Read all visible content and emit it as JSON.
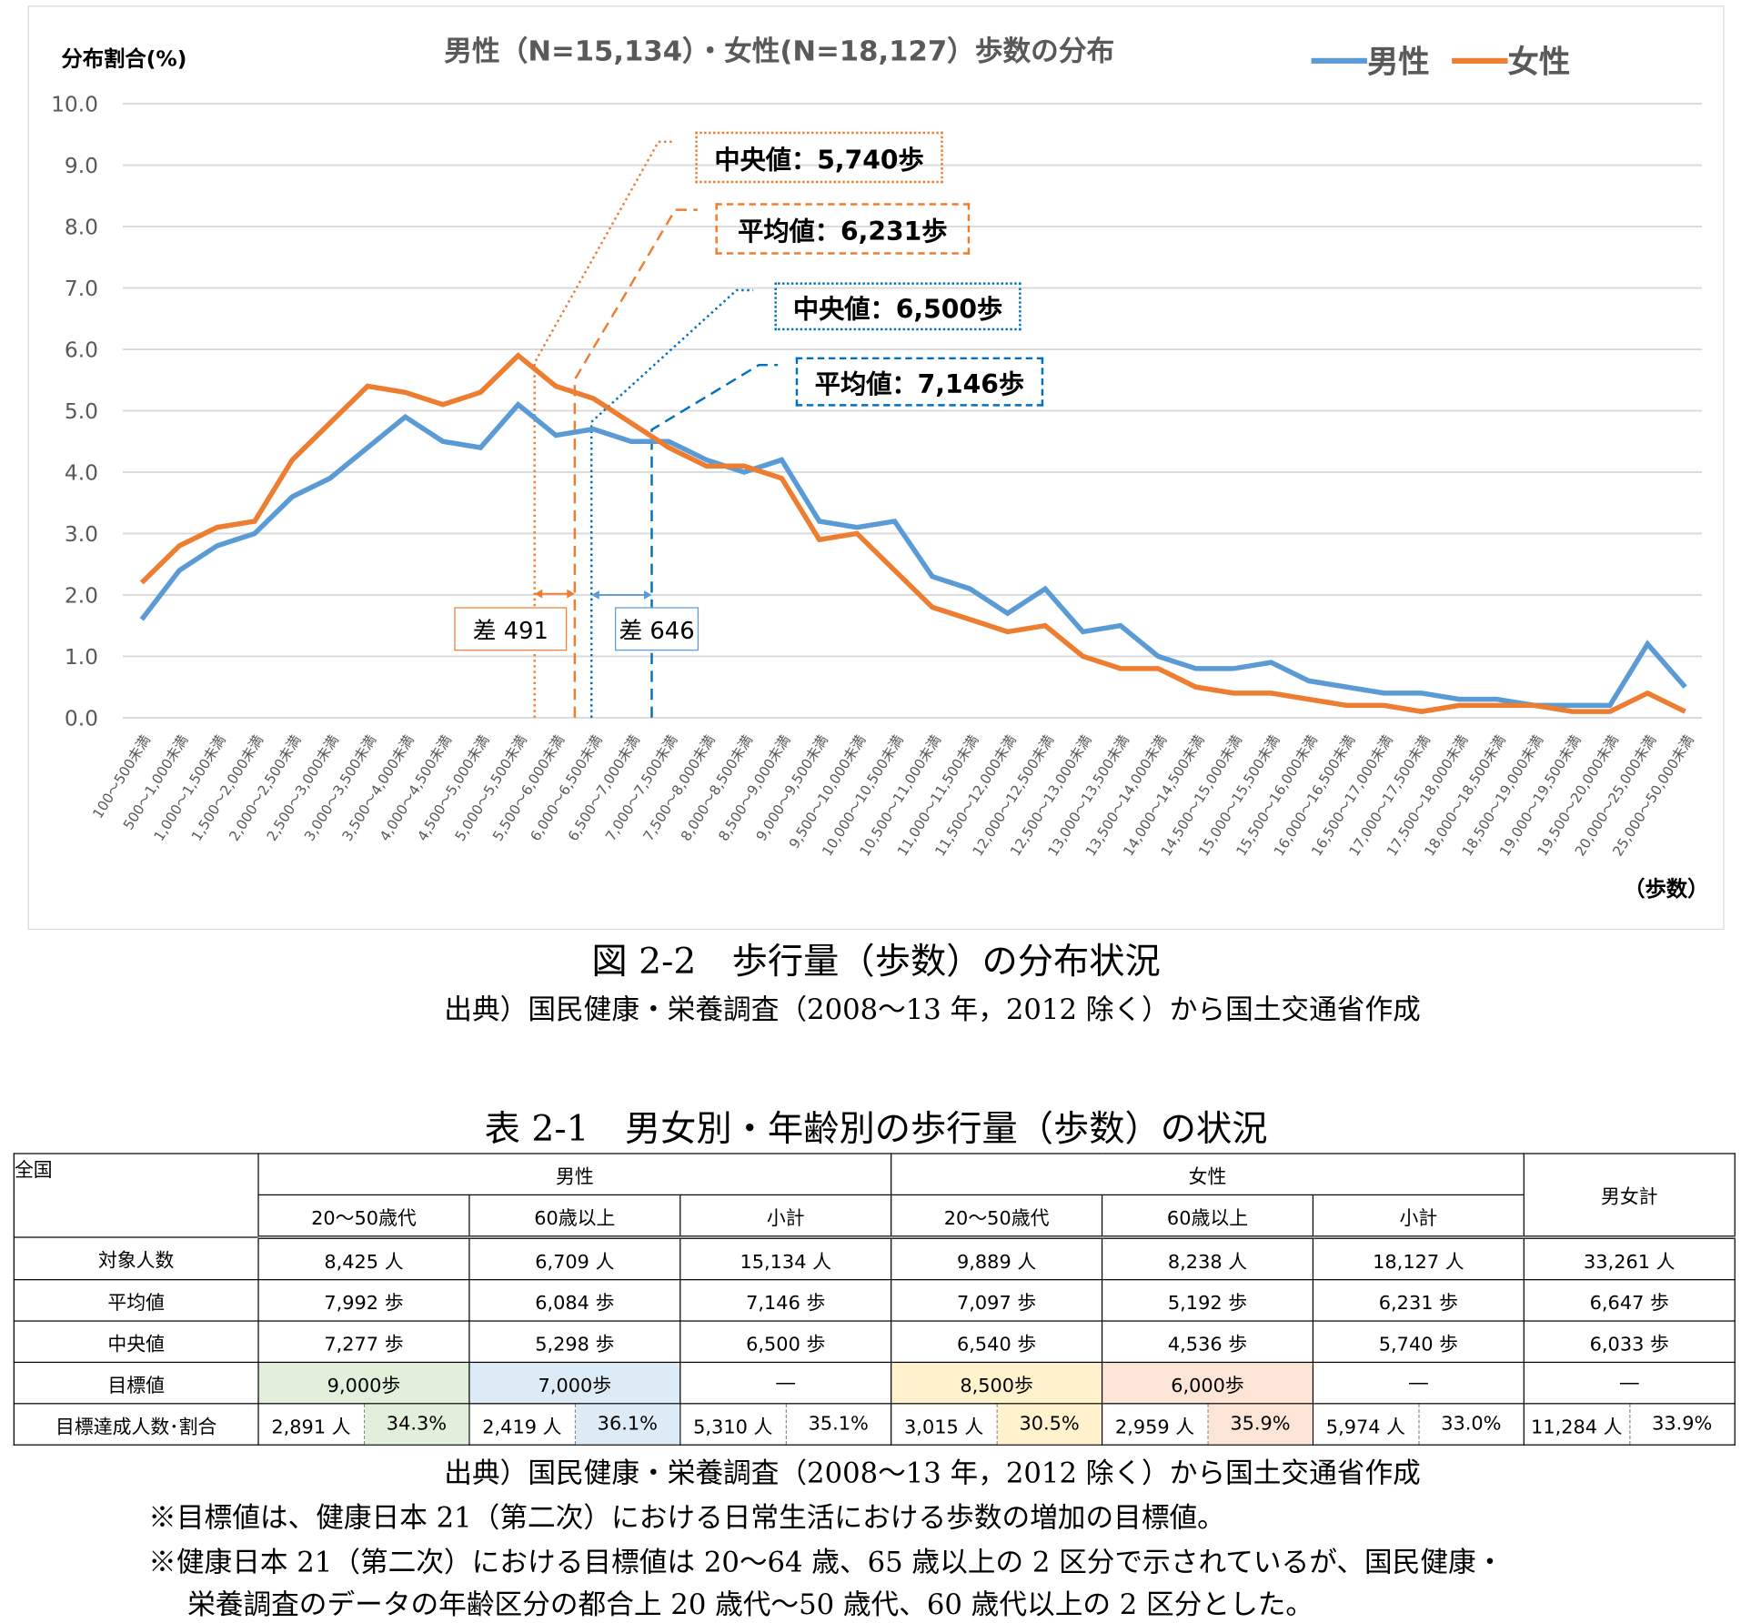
{
  "chart_data": {
    "type": "line",
    "title": "男性（N=15,134）・女性(N=18,127）歩数の分布",
    "ylabel": "分布割合(%)",
    "xlabel": "（歩数）",
    "ylim": [
      0,
      10
    ],
    "yticks": [
      "0.0",
      "1.0",
      "2.0",
      "3.0",
      "4.0",
      "5.0",
      "6.0",
      "7.0",
      "8.0",
      "9.0",
      "10.0"
    ],
    "grid": true,
    "legend": "top-right",
    "categories": [
      "100～500未満",
      "500～1,000未満",
      "1,000～1,500未満",
      "1,500～2,000未満",
      "2,000～2,500未満",
      "2,500～3,000未満",
      "3,000～3,500未満",
      "3,500～4,000未満",
      "4,000～4,500未満",
      "4,500～5,000未満",
      "5,000～5,500未満",
      "5,500～6,000未満",
      "6,000～6,500未満",
      "6,500～7,000未満",
      "7,000～7,500未満",
      "7,500～8,000未満",
      "8,000～8,500未満",
      "8,500～9,000未満",
      "9,000～9,500未満",
      "9,500～10,000未満",
      "10,000～10,500未満",
      "10,500～11,000未満",
      "11,000～11,500未満",
      "11,500～12,000未満",
      "12,000～12,500未満",
      "12,500～13,000未満",
      "13,000～13,500未満",
      "13,500～14,000未満",
      "14,000～14,500未満",
      "14,500～15,000未満",
      "15,000～15,500未満",
      "15,500～16,000未満",
      "16,000～16,500未満",
      "16,500～17,000未満",
      "17,000～17,500未満",
      "17,500～18,000未満",
      "18,000～18,500未満",
      "18,500～19,000未満",
      "19,000～19,500未満",
      "19,500～20,000未満",
      "20,000～25,000未満",
      "25,000～50,000未満"
    ],
    "series": [
      {
        "name": "男性",
        "color": "#5b9bd5",
        "values": [
          1.6,
          2.4,
          2.8,
          3.0,
          3.6,
          3.9,
          4.4,
          4.9,
          4.5,
          4.4,
          5.1,
          4.6,
          4.7,
          4.5,
          4.5,
          4.2,
          4.0,
          4.2,
          3.2,
          3.1,
          3.2,
          2.3,
          2.1,
          1.7,
          2.1,
          1.4,
          1.5,
          1.0,
          0.8,
          0.8,
          0.9,
          0.6,
          0.5,
          0.4,
          0.4,
          0.3,
          0.3,
          0.2,
          0.2,
          0.2,
          1.2,
          0.5
        ]
      },
      {
        "name": "女性",
        "color": "#ed7d31",
        "values": [
          2.2,
          2.8,
          3.1,
          3.2,
          4.2,
          4.8,
          5.4,
          5.3,
          5.1,
          5.3,
          5.9,
          5.4,
          5.2,
          4.8,
          4.4,
          4.1,
          4.1,
          3.9,
          2.9,
          3.0,
          2.4,
          1.8,
          1.6,
          1.4,
          1.5,
          1.0,
          0.8,
          0.8,
          0.5,
          0.4,
          0.4,
          0.3,
          0.2,
          0.2,
          0.1,
          0.2,
          0.2,
          0.2,
          0.1,
          0.1,
          0.4,
          0.1
        ]
      }
    ],
    "annotations": {
      "female_median": "中央値：5,740歩",
      "female_mean": "平均値：6,231歩",
      "male_median": "中央値：6,500歩",
      "male_mean": "平均値：7,146歩",
      "female_diff": "差 491",
      "male_diff": "差 646"
    }
  },
  "figure_caption": "図 2-2　歩行量（歩数）の分布状況",
  "figure_source": "出典）国民健康・栄養調査（2008～13 年，2012 除く）から国土交通省作成",
  "table": {
    "title": "表 2-1　男女別・年齢別の歩行量（歩数）の状況",
    "corner": "全国",
    "groups": [
      "男性",
      "女性",
      "男女計"
    ],
    "subheaders": [
      "20～50歳代",
      "60歳以上",
      "小計",
      "20～50歳代",
      "60歳以上",
      "小計"
    ],
    "rows": [
      {
        "label": "対象人数",
        "cells": [
          "8,425 人",
          "6,709 人",
          "15,134 人",
          "9,889 人",
          "8,238 人",
          "18,127 人",
          "33,261 人"
        ]
      },
      {
        "label": "平均値",
        "cells": [
          "7,992 歩",
          "6,084 歩",
          "7,146 歩",
          "7,097 歩",
          "5,192 歩",
          "6,231 歩",
          "6,647 歩"
        ]
      },
      {
        "label": "中央値",
        "cells": [
          "7,277 歩",
          "5,298 歩",
          "6,500 歩",
          "6,540 歩",
          "4,536 歩",
          "5,740 歩",
          "6,033 歩"
        ]
      },
      {
        "label": "目標値",
        "cells": [
          "9,000歩",
          "7,000歩",
          "―",
          "8,500歩",
          "6,000歩",
          "―",
          "―"
        ]
      }
    ],
    "achieve": {
      "label": "目標達成人数･割合",
      "cells": [
        [
          "2,891 人",
          "34.3%"
        ],
        [
          "2,419 人",
          "36.1%"
        ],
        [
          "5,310 人",
          "35.1%"
        ],
        [
          "3,015 人",
          "30.5%"
        ],
        [
          "2,959 人",
          "35.9%"
        ],
        [
          "5,974 人",
          "33.0%"
        ],
        [
          "11,284 人",
          "33.9%"
        ]
      ]
    },
    "highlight_colors": [
      "#e2efda",
      "#ddebf7",
      "#fff2cc",
      "#fce4d6"
    ]
  },
  "table_source": "出典）国民健康・栄養調査（2008～13 年，2012 除く）から国土交通省作成",
  "notes": [
    "※目標値は、健康日本 21（第二次）における日常生活における歩数の増加の目標値。",
    "※健康日本 21（第二次）における目標値は 20～64 歳、65 歳以上の 2 区分で示されているが、国民健康・",
    "栄養調査のデータの年齢区分の都合上 20 歳代～50 歳代、60 歳代以上の 2 区分とした。"
  ]
}
